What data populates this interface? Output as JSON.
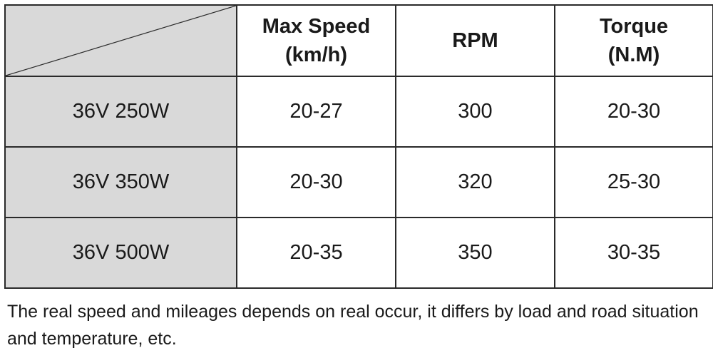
{
  "table": {
    "headers": {
      "max_speed_line1": "Max Speed",
      "max_speed_line2": "(km/h)",
      "rpm": "RPM",
      "torque_line1": "Torque",
      "torque_line2": "(N.M)"
    },
    "rows": [
      {
        "model": "36V 250W",
        "max_speed": "20-27",
        "rpm": "300",
        "torque": "20-30"
      },
      {
        "model": "36V 350W",
        "max_speed": "20-30",
        "rpm": "320",
        "torque": "25-30"
      },
      {
        "model": "36V 500W",
        "max_speed": "20-35",
        "rpm": "350",
        "torque": "30-35"
      }
    ]
  },
  "note": "The real speed and mileages depends on real occur, it differs by load and road situation and temperature, etc.",
  "colors": {
    "row_header_bg": "#d9d9d9",
    "border": "#2a2a2a",
    "text": "#1a1a1a"
  }
}
